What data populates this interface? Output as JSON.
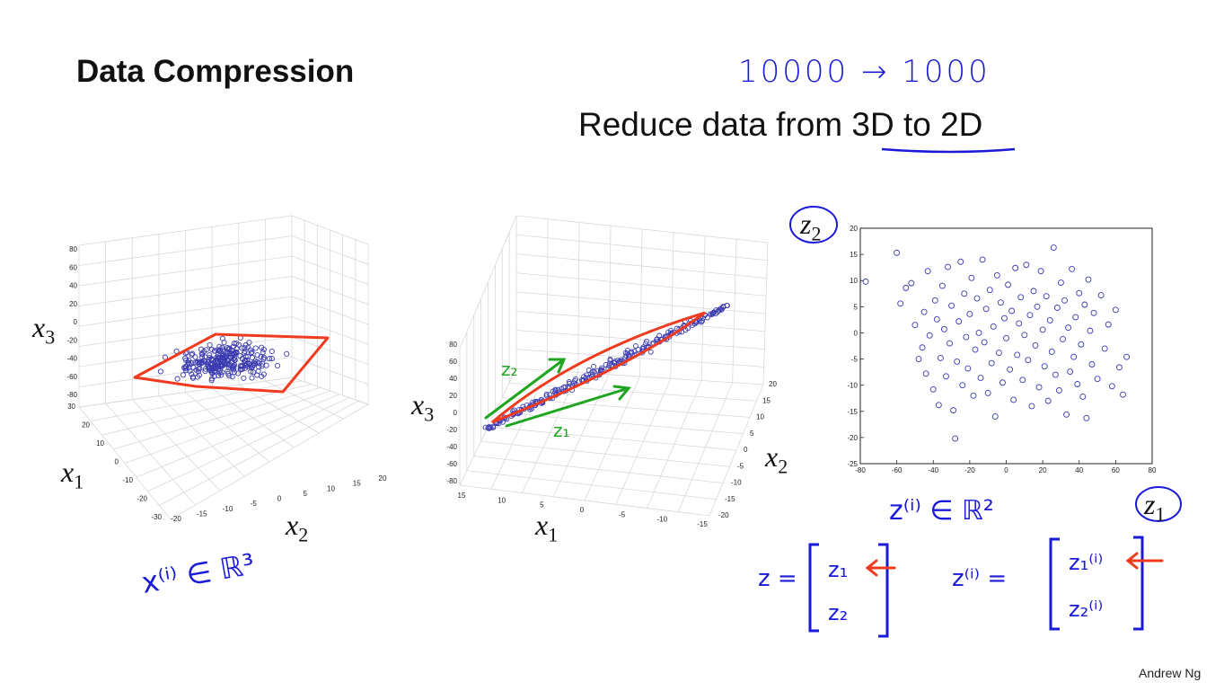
{
  "slide": {
    "title": "Data Compression",
    "subtitle_prefix": "Reduce data from ",
    "subtitle_underlined": "3D to 2D",
    "handwritten_top": "10000 → 1000",
    "author": "Andrew Ng"
  },
  "plot3d_left": {
    "x3_label": "x",
    "x3_sub": "3",
    "x1_label": "x",
    "x1_sub": "1",
    "x2_label": "x",
    "x2_sub": "2",
    "zticks": [
      "80",
      "60",
      "40",
      "20",
      "0",
      "-20",
      "-40",
      "-60",
      "-80"
    ],
    "x1ticks": [
      "30",
      "20",
      "10",
      "0",
      "-10",
      "-20",
      "-30"
    ],
    "x2ticks": [
      "-20",
      "-15",
      "-10",
      "-5",
      "0",
      "5",
      "10",
      "15",
      "20"
    ],
    "annotation": "x⁽ⁱ⁾ ∈ ℝ³",
    "colors": {
      "points": "#3a3ab0",
      "outline": "#f03a1e"
    }
  },
  "plot3d_middle": {
    "x3_label": "x",
    "x3_sub": "3",
    "x1_label": "x",
    "x1_sub": "1",
    "x2_label": "x",
    "x2_sub": "2",
    "zticks": [
      "80",
      "60",
      "40",
      "20",
      "0",
      "-20",
      "-40",
      "-60",
      "-80"
    ],
    "x1ticks": [
      "15",
      "10",
      "5",
      "0",
      "-5",
      "-10",
      "-15"
    ],
    "x2ticks": [
      "20",
      "15",
      "10",
      "5",
      "0",
      "-5",
      "-10",
      "-15",
      "-20"
    ],
    "z1_label": "z₁",
    "z2_label": "z₂",
    "colors": {
      "points": "#3a3ab0",
      "outline": "#f03a1e",
      "arrows": "#1fa51f"
    }
  },
  "plot2d": {
    "z2_label": "z",
    "z2_sub": "2",
    "z1_label": "z",
    "z1_sub": "1",
    "annotation": "z⁽ⁱ⁾ ∈ ℝ²",
    "chart_data": {
      "type": "scatter",
      "title": "",
      "xlabel": "z1",
      "ylabel": "z2",
      "xlim": [
        -80,
        80
      ],
      "ylim": [
        -25,
        20
      ],
      "xticks": [
        "-80",
        "-60",
        "-40",
        "-20",
        "0",
        "20",
        "40",
        "60",
        "80"
      ],
      "yticks": [
        "20",
        "15",
        "10",
        "5",
        "0",
        "-5",
        "-10",
        "-15",
        "-20",
        "-25"
      ],
      "points": [
        [
          -77,
          9.8
        ],
        [
          -60,
          15.3
        ],
        [
          -58,
          5.6
        ],
        [
          -55,
          8.6
        ],
        [
          -52,
          9.5
        ],
        [
          -50,
          1.5
        ],
        [
          -48,
          -5.0
        ],
        [
          -46,
          -2.8
        ],
        [
          -45,
          4.0
        ],
        [
          -44,
          -7.8
        ],
        [
          -43,
          11.8
        ],
        [
          -42,
          -0.5
        ],
        [
          -40,
          -10.8
        ],
        [
          -39,
          6.2
        ],
        [
          -38,
          2.6
        ],
        [
          -37,
          -13.8
        ],
        [
          -36,
          -4.8
        ],
        [
          -35,
          9.0
        ],
        [
          -34,
          0.7
        ],
        [
          -33,
          -8.3
        ],
        [
          -32,
          12.6
        ],
        [
          -31,
          -2.0
        ],
        [
          -30,
          5.2
        ],
        [
          -29,
          -14.8
        ],
        [
          -28,
          -20.2
        ],
        [
          -27,
          -5.5
        ],
        [
          -26,
          2.2
        ],
        [
          -25,
          13.6
        ],
        [
          -24,
          -10.0
        ],
        [
          -23,
          7.5
        ],
        [
          -22,
          -0.8
        ],
        [
          -21,
          -6.8
        ],
        [
          -20,
          3.6
        ],
        [
          -19,
          10.5
        ],
        [
          -18,
          -12.0
        ],
        [
          -17,
          -3.2
        ],
        [
          -16,
          6.6
        ],
        [
          -15,
          0.0
        ],
        [
          -14,
          -8.6
        ],
        [
          -13,
          14.0
        ],
        [
          -12,
          -1.8
        ],
        [
          -11,
          4.6
        ],
        [
          -10,
          -11.5
        ],
        [
          -9,
          8.2
        ],
        [
          -8,
          -5.8
        ],
        [
          -7,
          1.2
        ],
        [
          -6,
          -16.0
        ],
        [
          -5,
          11.0
        ],
        [
          -4,
          -3.8
        ],
        [
          -3,
          5.8
        ],
        [
          -2,
          -9.5
        ],
        [
          -1,
          2.8
        ],
        [
          0,
          -1.0
        ],
        [
          1,
          9.2
        ],
        [
          2,
          -7.0
        ],
        [
          3,
          4.2
        ],
        [
          4,
          -12.8
        ],
        [
          5,
          12.4
        ],
        [
          6,
          -4.2
        ],
        [
          7,
          1.8
        ],
        [
          8,
          6.8
        ],
        [
          9,
          -9.0
        ],
        [
          10,
          -0.4
        ],
        [
          11,
          13.0
        ],
        [
          12,
          -5.2
        ],
        [
          13,
          3.4
        ],
        [
          14,
          -14.0
        ],
        [
          15,
          8.0
        ],
        [
          16,
          -2.4
        ],
        [
          17,
          5.0
        ],
        [
          18,
          -10.4
        ],
        [
          19,
          11.8
        ],
        [
          20,
          0.6
        ],
        [
          21,
          -6.4
        ],
        [
          22,
          7.0
        ],
        [
          23,
          -13.0
        ],
        [
          24,
          2.4
        ],
        [
          25,
          -3.6
        ],
        [
          26,
          16.3
        ],
        [
          27,
          -8.0
        ],
        [
          28,
          4.8
        ],
        [
          29,
          -11.0
        ],
        [
          30,
          9.6
        ],
        [
          31,
          -1.2
        ],
        [
          32,
          6.2
        ],
        [
          33,
          -15.6
        ],
        [
          34,
          1.0
        ],
        [
          35,
          -7.4
        ],
        [
          36,
          12.2
        ],
        [
          37,
          -4.6
        ],
        [
          38,
          3.0
        ],
        [
          39,
          -9.8
        ],
        [
          40,
          7.6
        ],
        [
          41,
          -2.2
        ],
        [
          42,
          -12.2
        ],
        [
          43,
          5.4
        ],
        [
          44,
          -16.3
        ],
        [
          45,
          10.2
        ],
        [
          46,
          0.4
        ],
        [
          47,
          -6.0
        ],
        [
          48,
          3.8
        ],
        [
          50,
          -8.8
        ],
        [
          52,
          7.2
        ],
        [
          54,
          -3.0
        ],
        [
          56,
          1.6
        ],
        [
          58,
          -10.2
        ],
        [
          60,
          4.4
        ],
        [
          62,
          -6.6
        ],
        [
          64,
          -11.8
        ],
        [
          66,
          -4.6
        ]
      ]
    }
  },
  "vectors": {
    "z_left_lhs": "z =",
    "z_left_entries": [
      "z₁",
      "z₂"
    ],
    "z_right_lhs": "z⁽ⁱ⁾ =",
    "z_right_entries": [
      "z₁⁽ⁱ⁾",
      "z₂⁽ⁱ⁾"
    ],
    "arrow_color": "#f03a1e"
  }
}
